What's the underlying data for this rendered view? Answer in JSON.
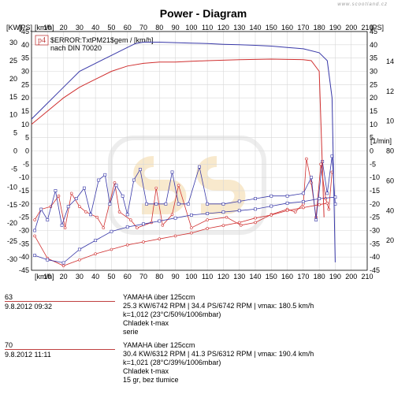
{
  "watermark": "www.scootland.cz",
  "chart_data": {
    "type": "line",
    "title": "Power - Diagram",
    "x_axis": {
      "label": "[km/h]",
      "range": [
        0,
        210
      ],
      "ticks": [
        0,
        10,
        20,
        30,
        40,
        50,
        60,
        70,
        80,
        90,
        100,
        110,
        120,
        130,
        140,
        150,
        160,
        170,
        180,
        190,
        200,
        210
      ]
    },
    "y_left_kw": {
      "label": "[KW]",
      "range": [
        -45,
        45
      ],
      "ticks": [
        30,
        25,
        20,
        15,
        10,
        5,
        0,
        -5,
        -10,
        -15,
        -20,
        -25,
        -30
      ]
    },
    "y_left_ps": {
      "label": "[PS]",
      "range": [
        -45,
        45
      ],
      "ticks": [
        45,
        40,
        35,
        30,
        25,
        20,
        15,
        10,
        5,
        0,
        -5,
        -10,
        -15,
        -20,
        -25,
        -30,
        -35,
        -40,
        -45
      ]
    },
    "y_right_ps": {
      "label": "[PS]",
      "range": [
        -45,
        45
      ],
      "ticks": [
        45,
        40,
        35,
        30,
        25,
        20,
        15,
        10,
        5,
        0,
        -5,
        -10,
        -15,
        -20,
        -25,
        -30,
        -35,
        -40,
        -45
      ]
    },
    "y_right_rpm": {
      "label": "[1/min]",
      "range": [
        0,
        16000
      ],
      "ticks": [
        14000,
        12000,
        10000,
        8000,
        6000,
        4000,
        2000,
        0
      ]
    },
    "annotation": {
      "badge": "p4",
      "line1": "$ERROR:TxtPM21$gem / [km/h]",
      "line2": "nach DIN 70020"
    },
    "series": [
      {
        "name": "63",
        "color": "#d03030",
        "power_ps": [
          [
            0,
            10
          ],
          [
            10,
            15
          ],
          [
            20,
            20
          ],
          [
            30,
            24
          ],
          [
            40,
            27
          ],
          [
            50,
            30
          ],
          [
            60,
            32
          ],
          [
            70,
            33
          ],
          [
            80,
            33.5
          ],
          [
            90,
            33.5
          ],
          [
            100,
            33.8
          ],
          [
            110,
            34
          ],
          [
            120,
            34.2
          ],
          [
            130,
            34.4
          ],
          [
            140,
            34.5
          ],
          [
            150,
            34.6
          ],
          [
            160,
            34.5
          ],
          [
            170,
            34.4
          ],
          [
            175,
            34
          ],
          [
            180,
            30
          ],
          [
            183,
            -25
          ]
        ],
        "rpm": [
          [
            2,
            2300
          ],
          [
            10,
            800
          ],
          [
            20,
            300
          ],
          [
            30,
            700
          ],
          [
            40,
            1100
          ],
          [
            50,
            1400
          ],
          [
            60,
            1700
          ],
          [
            70,
            1900
          ],
          [
            80,
            2100
          ],
          [
            90,
            2300
          ],
          [
            100,
            2500
          ],
          [
            110,
            2800
          ],
          [
            120,
            3000
          ],
          [
            130,
            3200
          ],
          [
            140,
            3500
          ],
          [
            150,
            3700
          ],
          [
            160,
            4000
          ],
          [
            170,
            4200
          ],
          [
            180,
            4400
          ],
          [
            185,
            4500
          ]
        ]
      },
      {
        "name": "70",
        "color": "#3838a8",
        "power_ps": [
          [
            0,
            12
          ],
          [
            10,
            18
          ],
          [
            20,
            24
          ],
          [
            30,
            30
          ],
          [
            40,
            33
          ],
          [
            50,
            36
          ],
          [
            60,
            39
          ],
          [
            65,
            40.5
          ],
          [
            70,
            41
          ],
          [
            80,
            41
          ],
          [
            90,
            40.8
          ],
          [
            100,
            40.6
          ],
          [
            110,
            40.5
          ],
          [
            120,
            40.2
          ],
          [
            130,
            40
          ],
          [
            140,
            39.8
          ],
          [
            150,
            39.5
          ],
          [
            160,
            39
          ],
          [
            170,
            38.5
          ],
          [
            180,
            37
          ],
          [
            185,
            34
          ],
          [
            188,
            20
          ],
          [
            190,
            -42
          ]
        ],
        "rpm": [
          [
            2,
            1000
          ],
          [
            10,
            700
          ],
          [
            20,
            500
          ],
          [
            30,
            1400
          ],
          [
            40,
            2000
          ],
          [
            50,
            2600
          ],
          [
            60,
            2900
          ],
          [
            70,
            3100
          ],
          [
            80,
            3300
          ],
          [
            90,
            3500
          ],
          [
            100,
            3700
          ],
          [
            110,
            3800
          ],
          [
            120,
            3900
          ],
          [
            130,
            4000
          ],
          [
            140,
            4100
          ],
          [
            150,
            4300
          ],
          [
            160,
            4500
          ],
          [
            170,
            4600
          ],
          [
            180,
            4800
          ],
          [
            190,
            4900
          ]
        ]
      }
    ],
    "spikes_red": [
      [
        2,
        -26
      ],
      [
        6,
        -22
      ],
      [
        12,
        -21
      ],
      [
        17,
        -17
      ],
      [
        21,
        -29
      ],
      [
        25,
        -16
      ],
      [
        30,
        -21
      ],
      [
        34,
        -23
      ],
      [
        41,
        -25
      ],
      [
        45,
        -29
      ],
      [
        52,
        -12
      ],
      [
        55,
        -23
      ],
      [
        62,
        -26
      ],
      [
        66,
        -29
      ],
      [
        75,
        -27
      ],
      [
        78,
        -14
      ],
      [
        82,
        -28
      ],
      [
        88,
        -24
      ],
      [
        92,
        -13
      ],
      [
        100,
        -29
      ],
      [
        110,
        -26
      ],
      [
        122,
        -25
      ],
      [
        131,
        -28
      ],
      [
        140,
        -27
      ],
      [
        150,
        -24
      ],
      [
        160,
        -22
      ],
      [
        165,
        -23
      ],
      [
        170,
        -20
      ],
      [
        172,
        -3
      ],
      [
        175,
        -12
      ],
      [
        178,
        -25
      ],
      [
        181,
        -5
      ],
      [
        184,
        -18
      ],
      [
        186,
        -22
      ],
      [
        188,
        -8
      ]
    ],
    "spikes_blue": [
      [
        2,
        -30
      ],
      [
        6,
        -22
      ],
      [
        10,
        -26
      ],
      [
        15,
        -15
      ],
      [
        19,
        -28
      ],
      [
        23,
        -21
      ],
      [
        28,
        -18
      ],
      [
        33,
        -14
      ],
      [
        37,
        -24
      ],
      [
        42,
        -11
      ],
      [
        46,
        -9
      ],
      [
        49,
        -20
      ],
      [
        53,
        -13
      ],
      [
        57,
        -17
      ],
      [
        60,
        -24
      ],
      [
        64,
        -11
      ],
      [
        68,
        -7
      ],
      [
        72,
        -20
      ],
      [
        78,
        -20
      ],
      [
        84,
        -20
      ],
      [
        88,
        -8
      ],
      [
        92,
        -20
      ],
      [
        98,
        -20
      ],
      [
        105,
        -6
      ],
      [
        110,
        -20
      ],
      [
        120,
        -20
      ],
      [
        130,
        -19
      ],
      [
        140,
        -18
      ],
      [
        150,
        -17
      ],
      [
        160,
        -17
      ],
      [
        170,
        -16
      ],
      [
        175,
        -10
      ],
      [
        178,
        -26
      ],
      [
        182,
        -4
      ],
      [
        185,
        -16
      ],
      [
        188,
        -2
      ],
      [
        190,
        -20
      ]
    ]
  },
  "legend": [
    {
      "code": "63",
      "date": "9.8.2012   09:32",
      "color": "#c04040",
      "lines": [
        "YAMAHA über 125ccm",
        "25.3 KW/6742 RPM  |  34.4 PS/6742 RPM  |  vmax: 180.5 km/h",
        "k=1,012 (23°C/50%/1006mbar)",
        "Chladek t-max",
        "serie"
      ]
    },
    {
      "code": "70",
      "date": "9.8.2012   11:11",
      "color": "#c04040",
      "lines": [
        "YAMAHA über 125ccm",
        "30.4 KW/6312 RPM  |  41.3 PS/6312 RPM  |  vmax: 190.4 km/h",
        "k=1,021 (28°C/39%/1006mbar)",
        "Chladek t-max",
        "15 gr, bez tlumice"
      ]
    }
  ]
}
